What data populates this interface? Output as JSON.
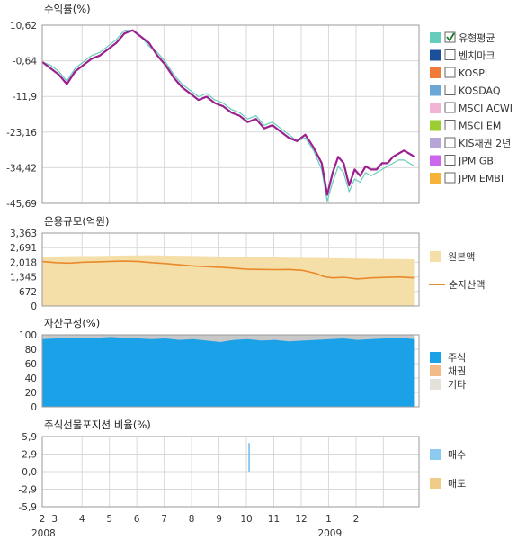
{
  "chart_data": [
    {
      "type": "line",
      "title": "수익률(%)",
      "yticks": [
        "10,62",
        "-0,64",
        "-11,9",
        "-23,16",
        "-34,42",
        "-45,69"
      ],
      "ylim": [
        -45.69,
        10.62
      ],
      "legend": [
        {
          "label": "유형평균",
          "color": "#66ccbb",
          "checked": true
        },
        {
          "label": "벤치마크",
          "color": "#1a4f9c",
          "checked": false
        },
        {
          "label": "KOSPI",
          "color": "#f07a3a",
          "checked": false
        },
        {
          "label": "KOSDAQ",
          "color": "#6aa6d6",
          "checked": false
        },
        {
          "label": "MSCI ACWI",
          "color": "#f3b3d6",
          "checked": false
        },
        {
          "label": "MSCI EM",
          "color": "#9acd32",
          "checked": false
        },
        {
          "label": "KIS채권 2년",
          "color": "#b6a6d8",
          "checked": false
        },
        {
          "label": "JPM GBI",
          "color": "#cc66ee",
          "checked": false
        },
        {
          "label": "JPM EMBI",
          "color": "#f7b23a",
          "checked": false
        }
      ],
      "series": [
        {
          "color": "#9b1f8f",
          "x": [
            0.0,
            0.3,
            0.6,
            0.9,
            1.2,
            1.5,
            1.8,
            2.1,
            2.4,
            2.7,
            3.0,
            3.3,
            3.6,
            3.9,
            4.2,
            4.5,
            4.8,
            5.1,
            5.4,
            5.7,
            6.0,
            6.3,
            6.6,
            6.9,
            7.2,
            7.5,
            7.8,
            8.1,
            8.4,
            8.7,
            9.0,
            9.3,
            9.6,
            9.9,
            10.2,
            10.4,
            10.6,
            10.8,
            11.0,
            11.2,
            11.4,
            11.6,
            11.8,
            12.0,
            12.2,
            12.4,
            12.6,
            12.8,
            13.0,
            13.2,
            13.4,
            13.6
          ],
          "values": [
            -1,
            -3,
            -5,
            -8,
            -4,
            -2,
            0,
            1,
            3,
            5,
            8,
            9,
            7,
            5,
            1,
            -2,
            -6,
            -9,
            -11,
            -13,
            -12,
            -14,
            -15,
            -17,
            -18,
            -20,
            -19,
            -22,
            -21,
            -23,
            -25,
            -26,
            -24,
            -28,
            -33,
            -43,
            -36,
            -31,
            -33,
            -40,
            -35,
            -37,
            -34,
            -35,
            -35,
            -33,
            -33,
            -31,
            -30,
            -29,
            -30,
            -31
          ]
        },
        {
          "color": "#66ccbb",
          "x": [
            0.0,
            0.3,
            0.6,
            0.9,
            1.2,
            1.5,
            1.8,
            2.1,
            2.4,
            2.7,
            3.0,
            3.3,
            3.6,
            3.9,
            4.2,
            4.5,
            4.8,
            5.1,
            5.4,
            5.7,
            6.0,
            6.3,
            6.6,
            6.9,
            7.2,
            7.5,
            7.8,
            8.1,
            8.4,
            8.7,
            9.0,
            9.3,
            9.6,
            9.9,
            10.2,
            10.4,
            10.6,
            10.8,
            11.0,
            11.2,
            11.4,
            11.6,
            11.8,
            12.0,
            12.2,
            12.4,
            12.6,
            12.8,
            13.0,
            13.2,
            13.4,
            13.6
          ],
          "values": [
            -1,
            -2,
            -4,
            -7,
            -3,
            -1,
            1,
            2,
            4,
            6,
            9,
            9,
            7,
            4,
            2,
            -1,
            -5,
            -8,
            -10,
            -12,
            -11,
            -13,
            -14,
            -16,
            -17,
            -19,
            -18,
            -21,
            -20,
            -22,
            -24,
            -26,
            -25,
            -29,
            -35,
            -45,
            -39,
            -34,
            -36,
            -42,
            -38,
            -39,
            -36,
            -37,
            -36,
            -35,
            -34,
            -33,
            -32,
            -32,
            -33,
            -34
          ]
        }
      ]
    },
    {
      "type": "area",
      "title": "운용규모(억원)",
      "yticks": [
        "3,363",
        "2,691",
        "2,018",
        "1,345",
        "672",
        "0"
      ],
      "ylim": [
        0,
        3363
      ],
      "legend": [
        {
          "label": "원본액",
          "color": "#f5dfa8"
        },
        {
          "label": "순자산액",
          "color": "#e8892a"
        }
      ],
      "series": [
        {
          "color": "#f5dfa8",
          "x": [
            0,
            1,
            2,
            3,
            4,
            5,
            6,
            7,
            8,
            9,
            10,
            11,
            12,
            13,
            13.6
          ],
          "values": [
            2280,
            2300,
            2310,
            2330,
            2340,
            2320,
            2300,
            2270,
            2250,
            2230,
            2220,
            2200,
            2180,
            2170,
            2160
          ]
        },
        {
          "color": "#e8892a",
          "x": [
            0,
            0.5,
            1,
            1.5,
            2,
            2.5,
            3,
            3.5,
            4,
            4.5,
            5,
            5.5,
            6,
            6.5,
            7,
            7.5,
            8,
            8.5,
            9,
            9.5,
            10,
            10.3,
            10.6,
            11,
            11.5,
            12,
            12.5,
            13,
            13.6
          ],
          "values": [
            2050,
            2000,
            1980,
            2020,
            2040,
            2060,
            2070,
            2060,
            2000,
            1960,
            1900,
            1850,
            1820,
            1790,
            1750,
            1700,
            1690,
            1680,
            1690,
            1650,
            1500,
            1350,
            1300,
            1330,
            1250,
            1300,
            1320,
            1340,
            1300
          ]
        }
      ]
    },
    {
      "type": "area",
      "title": "자산구성(%)",
      "yticks": [
        "100",
        "80",
        "60",
        "40",
        "20",
        "0"
      ],
      "ylim": [
        0,
        100
      ],
      "legend": [
        {
          "label": "주식",
          "color": "#1ba1e8"
        },
        {
          "label": "채권",
          "color": "#f2b98a"
        },
        {
          "label": "기타",
          "color": "#e4e1da"
        }
      ],
      "series": [
        {
          "name": "주식",
          "color": "#1ba1e8",
          "x": [
            0,
            0.5,
            1,
            1.5,
            2,
            2.5,
            3,
            3.5,
            4,
            4.5,
            5,
            5.5,
            6,
            6.5,
            7,
            7.5,
            8,
            8.5,
            9,
            9.5,
            10,
            10.5,
            11,
            11.5,
            12,
            12.5,
            13,
            13.6
          ],
          "values": [
            94,
            95,
            96,
            95,
            96,
            97,
            96,
            95,
            94,
            95,
            93,
            94,
            92,
            90,
            93,
            94,
            92,
            93,
            91,
            92,
            93,
            94,
            95,
            93,
            94,
            95,
            96,
            94
          ]
        },
        {
          "name": "기타",
          "color": "#c8c8c8",
          "x": [
            0,
            13.6
          ],
          "values": [
            100,
            100
          ]
        }
      ]
    },
    {
      "type": "bar",
      "title": "주식선물포지션 비율(%)",
      "yticks": [
        "5,9",
        "2,9",
        "0,0",
        "-2,9",
        "-5,9"
      ],
      "ylim": [
        -5.9,
        5.9
      ],
      "legend": [
        {
          "label": "매수",
          "color": "#8ccaf0"
        },
        {
          "label": "매도",
          "color": "#f0cc88"
        }
      ],
      "bars": [
        {
          "x": 7.55,
          "value": 4.8,
          "color": "#8ccaf0"
        }
      ]
    }
  ],
  "x_axis": {
    "ticks": [
      {
        "label": "2",
        "x": 0.0
      },
      {
        "label": "3",
        "x": 0.45
      },
      {
        "label": "4",
        "x": 1.45
      },
      {
        "label": "5",
        "x": 2.45
      },
      {
        "label": "6",
        "x": 3.45
      },
      {
        "label": "7",
        "x": 4.45
      },
      {
        "label": "8",
        "x": 5.45
      },
      {
        "label": "9",
        "x": 6.45
      },
      {
        "label": "10",
        "x": 7.45
      },
      {
        "label": "11",
        "x": 8.45
      },
      {
        "label": "12",
        "x": 9.45
      },
      {
        "label": "1",
        "x": 10.45
      },
      {
        "label": "2",
        "x": 11.45
      }
    ],
    "years": [
      {
        "label": "2008",
        "x": 0.0
      },
      {
        "label": "2009",
        "x": 10.45
      }
    ]
  }
}
